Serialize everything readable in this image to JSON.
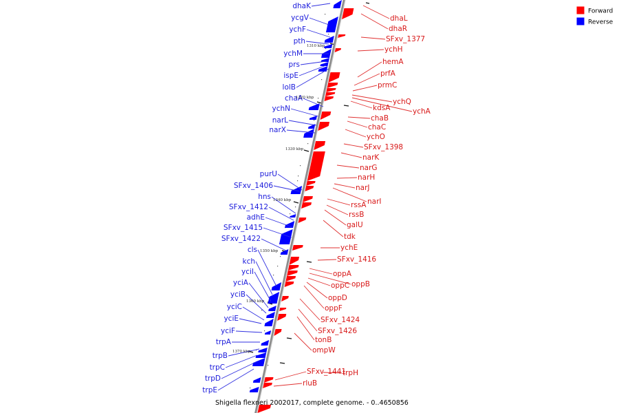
{
  "caption": "Shigella flexneri 2002017, complete genome. - 0..4650856",
  "legend": [
    {
      "label": "Forward",
      "color": "#ff0000"
    },
    {
      "label": "Reverse",
      "color": "#0000ff"
    }
  ],
  "colors": {
    "forward": "#ff0000",
    "reverse": "#0000ff",
    "forward_text": "#d81818",
    "reverse_text": "#1a1adb",
    "forward_line": "#e03030",
    "reverse_line": "#3030e0",
    "backbone": "#8c8c8c"
  },
  "kbp_labels": [
    "1310 kbp",
    "1320 kbp",
    "1330 kbp",
    "1340 kbp",
    "1350 kbp",
    "1360 kbp",
    "1370 kbp"
  ],
  "reverse_genes": [
    "dhaK",
    "ycgV",
    "ychF",
    "pth",
    "ychM",
    "prs",
    "ispE",
    "lolB",
    "chaA",
    "ychN",
    "narL",
    "narX",
    "purU",
    "SFxv_1406",
    "hns",
    "SFxv_1412",
    "adhE",
    "SFxv_1415",
    "SFxv_1422",
    "cls",
    "kch",
    "yciI",
    "yciA",
    "yciB",
    "yciC",
    "yciE",
    "yciF",
    "trpA",
    "trpB",
    "trpC",
    "trpD",
    "trpE"
  ],
  "forward_genes": [
    "dhaL",
    "dhaR",
    "SFxv_1377",
    "ychH",
    "hemA",
    "prfA",
    "prmC",
    "ychQ",
    "ychA",
    "kdsA",
    "chaB",
    "chaC",
    "ychO",
    "SFxv_1398",
    "narK",
    "narG",
    "narH",
    "narJ",
    "narI",
    "rssA",
    "rssB",
    "galU",
    "tdk",
    "ychE",
    "SFxv_1416",
    "oppA",
    "oppB",
    "oppC",
    "oppD",
    "oppF",
    "SFxv_1424",
    "SFxv_1426",
    "tonB",
    "ompW",
    "SFxv_1441",
    "trpH",
    "rluB"
  ]
}
